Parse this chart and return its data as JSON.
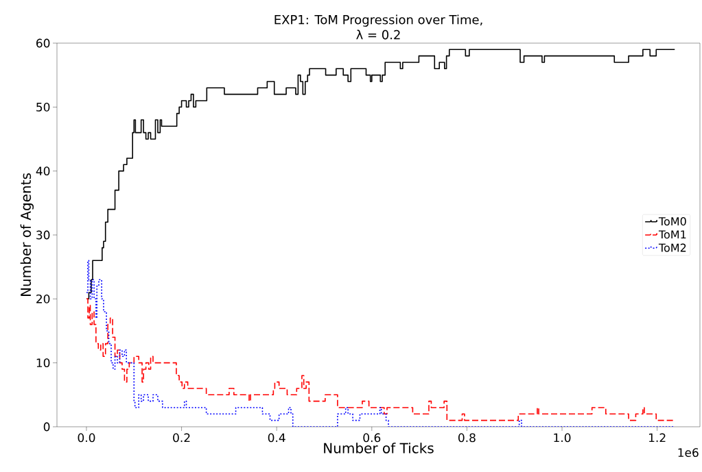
{
  "chart_data": {
    "type": "step",
    "title": "EXP1: ToM Progression over Time,",
    "subtitle": "λ = 0.2",
    "xlabel": "Number of Ticks",
    "ylabel": "Number of Agents",
    "annotations": [
      "1e6"
    ],
    "xlim": [
      -0.062,
      1.29
    ],
    "ylim": [
      0,
      60
    ],
    "xticks": [
      {
        "value": 0,
        "label": "0.0"
      },
      {
        "value": 0.2,
        "label": "0.2"
      },
      {
        "value": 0.4,
        "label": "0.4"
      },
      {
        "value": 0.6,
        "label": "0.6"
      },
      {
        "value": 0.8,
        "label": "0.8"
      },
      {
        "value": 1.0,
        "label": "1.0"
      },
      {
        "value": 1.2,
        "label": "1.2"
      }
    ],
    "yticks": [
      0,
      10,
      20,
      30,
      40,
      50,
      60
    ],
    "grid": false,
    "legend": "right",
    "marker": "none",
    "series": [
      {
        "name": "ToM0",
        "color": "#000000",
        "line_style": "solid",
        "x": [
          0,
          0.005,
          0.01,
          0.013,
          0.033,
          0.036,
          0.04,
          0.045,
          0.06,
          0.068,
          0.078,
          0.085,
          0.097,
          0.1,
          0.103,
          0.115,
          0.12,
          0.125,
          0.13,
          0.135,
          0.145,
          0.15,
          0.155,
          0.158,
          0.19,
          0.195,
          0.2,
          0.21,
          0.215,
          0.22,
          0.225,
          0.23,
          0.253,
          0.29,
          0.36,
          0.38,
          0.395,
          0.42,
          0.44,
          0.445,
          0.45,
          0.455,
          0.46,
          0.465,
          0.469,
          0.503,
          0.525,
          0.54,
          0.55,
          0.556,
          0.588,
          0.597,
          0.6,
          0.618,
          0.622,
          0.628,
          0.66,
          0.665,
          0.699,
          0.732,
          0.742,
          0.753,
          0.757,
          0.763,
          0.797,
          0.805,
          0.912,
          0.92,
          0.958,
          0.963,
          1.11,
          1.14,
          1.17,
          1.185,
          1.198,
          1.237
        ],
        "values": [
          20,
          21,
          23,
          26,
          28,
          29,
          32,
          34,
          37,
          40,
          41,
          42,
          46,
          48,
          46,
          48,
          46,
          45,
          46,
          45,
          48,
          46,
          48,
          47,
          49,
          50,
          51,
          50,
          51,
          52,
          50,
          51,
          53,
          52,
          53,
          54,
          52,
          53,
          52,
          55,
          54,
          52,
          54,
          55,
          56,
          55,
          56,
          55,
          54,
          56,
          55,
          54,
          55,
          54,
          55,
          57,
          56,
          57,
          58,
          56,
          57,
          56,
          58,
          59,
          58,
          59,
          57,
          58,
          57,
          58,
          57,
          58,
          59,
          58,
          59,
          59
        ]
      },
      {
        "name": "ToM1",
        "color": "#ff0000",
        "line_style": "dashed",
        "x": [
          0,
          0.003,
          0.006,
          0.008,
          0.012,
          0.016,
          0.02,
          0.025,
          0.03,
          0.035,
          0.04,
          0.045,
          0.05,
          0.055,
          0.06,
          0.065,
          0.07,
          0.075,
          0.08,
          0.085,
          0.09,
          0.1,
          0.11,
          0.117,
          0.12,
          0.125,
          0.131,
          0.135,
          0.14,
          0.189,
          0.195,
          0.201,
          0.206,
          0.213,
          0.252,
          0.3,
          0.31,
          0.342,
          0.345,
          0.393,
          0.396,
          0.405,
          0.422,
          0.442,
          0.453,
          0.457,
          0.462,
          0.468,
          0.502,
          0.528,
          0.58,
          0.594,
          0.626,
          0.632,
          0.686,
          0.72,
          0.725,
          0.752,
          0.758,
          0.79,
          0.795,
          0.908,
          0.948,
          0.951,
          1.063,
          1.092,
          1.14,
          1.155,
          1.17,
          1.173,
          1.198,
          1.236
        ],
        "values": [
          20,
          17,
          19,
          16,
          18,
          16,
          13,
          12,
          13,
          11,
          13,
          16,
          17,
          14,
          11,
          12,
          10,
          9,
          7,
          9,
          10,
          11,
          10,
          7,
          9,
          10,
          9,
          11,
          10,
          8,
          7,
          6,
          7,
          6,
          5,
          6,
          5,
          4,
          5,
          6,
          7,
          6,
          5,
          6,
          8,
          6,
          7,
          4,
          5,
          3,
          4,
          3,
          2,
          3,
          2,
          4,
          3,
          4,
          1,
          2,
          1,
          2,
          3,
          2,
          3,
          2,
          1,
          2,
          3,
          2,
          1,
          1
        ]
      },
      {
        "name": "ToM2",
        "color": "#0000ff",
        "line_style": "dotted",
        "x": [
          0,
          0.003,
          0.005,
          0.008,
          0.012,
          0.016,
          0.02,
          0.022,
          0.026,
          0.032,
          0.036,
          0.042,
          0.047,
          0.052,
          0.056,
          0.06,
          0.065,
          0.07,
          0.075,
          0.08,
          0.084,
          0.1,
          0.102,
          0.11,
          0.115,
          0.12,
          0.13,
          0.14,
          0.15,
          0.16,
          0.206,
          0.21,
          0.252,
          0.314,
          0.37,
          0.386,
          0.405,
          0.425,
          0.43,
          0.434,
          0.528,
          0.545,
          0.55,
          0.56,
          0.575,
          0.617,
          0.62,
          0.63,
          0.635,
          0.91,
          0.915,
          1.236
        ],
        "values": [
          21,
          26,
          23,
          20,
          23,
          20,
          17,
          22,
          23,
          20,
          18,
          15,
          13,
          10,
          9,
          11,
          10,
          12,
          11,
          12,
          10,
          4,
          3,
          5,
          4,
          5,
          4,
          5,
          4,
          3,
          4,
          3,
          2,
          3,
          2,
          1,
          2,
          3,
          2,
          0,
          2,
          3,
          2,
          1,
          2,
          3,
          2,
          1,
          0,
          1,
          0,
          0
        ]
      }
    ]
  }
}
